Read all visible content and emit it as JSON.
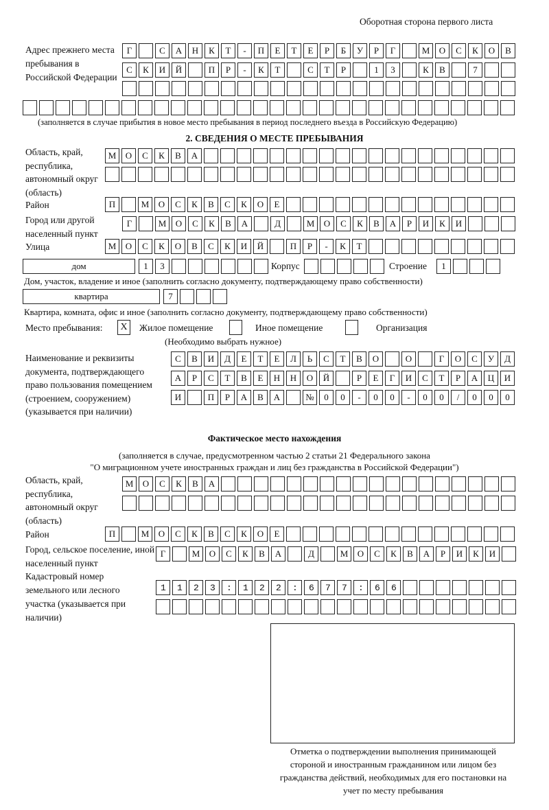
{
  "header": "Оборотная сторона первого листа",
  "previous_address": {
    "label": "Адрес прежнего места пребывания в Российской Федерации",
    "rows": [
      "Г САНКТ-ПЕТЕРБУРГ МОСКОВ",
      "СКИЙ ПР-КТ СТР 13 КВ 7",
      "",
      ""
    ],
    "note": "(заполняется в случае прибытия в новое место пребывания в период последнего въезда в Российскую Федерацию)"
  },
  "section2": {
    "title": "2. СВЕДЕНИЯ О МЕСТЕ ПРЕБЫВАНИЯ",
    "region_label": "Область, край, республика, автономный округ (область)",
    "region_rows": [
      "МОСКВА",
      ""
    ],
    "district_label": "Район",
    "district": "П МОСКВСКОЕ",
    "city_label": "Город или другой населенный пункт",
    "city": "Г МОСКВА Д МОСКВАРИКИ",
    "street_label": "Улица",
    "street": "МОСКОВСКИЙ ПР-КТ",
    "house_type": "дом",
    "house_number": "13",
    "building_label": "Корпус",
    "building": "",
    "structure_label": "Строение",
    "structure": "1",
    "house_note": "Дом, участок, владение и иное (заполнить согласно документу, подтверждающему право собственности)",
    "apartment_type": "квартира",
    "apartment_number": "7",
    "apartment_note": "Квартира, комната, офис и иное (заполнить согласно документу, подтверждающему право собственности)",
    "place_label": "Место пребывания:",
    "place_options": [
      {
        "label": "Жилое помещение",
        "mark": "X"
      },
      {
        "label": "Иное помещение",
        "mark": ""
      },
      {
        "label": "Организация",
        "mark": ""
      }
    ],
    "place_note": "(Необходимо выбрать нужное)",
    "document_label": "Наименование и реквизиты документа, подтверждающего право пользования помещением (строением, сооружением) (указывается при наличии)",
    "document_rows": [
      "СВИДЕТЕЛЬСТВО О ГОСУД",
      "АРСТВЕННОЙ РЕГИСТРАЦИ",
      "И ПРАВА №00-00-00/000"
    ]
  },
  "actual": {
    "title": "Фактическое место нахождения",
    "note_line1": "(заполняется в случае, предусмотренном частью 2 статьи 21 Федерального закона",
    "note_line2": "\"О миграционном учете иностранных граждан и лиц без гражданства в Российской Федерации\")",
    "region_label": "Область, край, республика, автономный округ (область)",
    "region_rows": [
      "МОСКВА",
      ""
    ],
    "district_label": "Район",
    "district": "П МОСКВСКОЕ",
    "city_label": "Город, сельское поселение, иной населенный пункт",
    "city": "Г МОСКВА Д МОСКВАРИКИ",
    "cadastral_label": "Кадастровый номер земельного или лесного участка (указывается при наличии)",
    "cadastral_rows": [
      "1123:122:677:66",
      ""
    ]
  },
  "stamp_caption": "Отметка о подтверждении выполнения принимающей стороной и иностранным гражданином или лицом без гражданства действий, необходимых для его постановки на учет по месту пребывания"
}
